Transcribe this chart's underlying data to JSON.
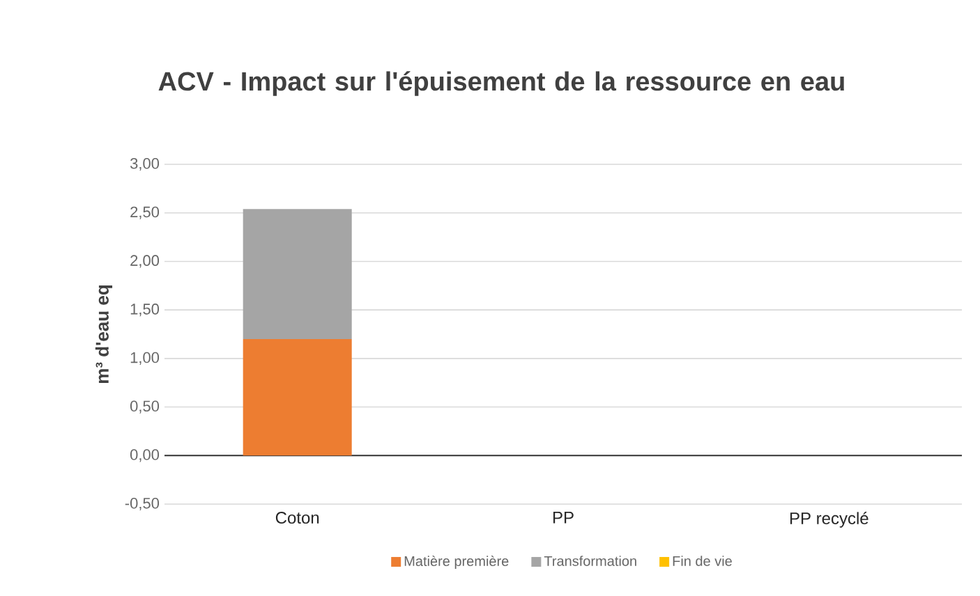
{
  "chart_data": {
    "type": "bar",
    "title": "ACV - Impact sur l'épuisement de la ressource en eau",
    "ylabel": "m³ d'eau eq",
    "categories": [
      "Coton",
      "PP",
      "PP recyclé"
    ],
    "series": [
      {
        "name": "Matière première",
        "color": "#ed7d31",
        "values": [
          1.2,
          0,
          0
        ]
      },
      {
        "name": "Transformation",
        "color": "#a5a5a5",
        "values": [
          1.34,
          0,
          0
        ]
      },
      {
        "name": "Fin de vie",
        "color": "#ffc000",
        "values": [
          0,
          0,
          0
        ]
      }
    ],
    "stacked": true,
    "ylim": [
      -0.5,
      3.0
    ],
    "yticks": [
      {
        "value": -0.5,
        "label": "-0,50"
      },
      {
        "value": 0,
        "label": "0,00"
      },
      {
        "value": 0.5,
        "label": "0,50"
      },
      {
        "value": 1.0,
        "label": "1,00"
      },
      {
        "value": 1.5,
        "label": "1,50"
      },
      {
        "value": 2.0,
        "label": "2,00"
      },
      {
        "value": 2.5,
        "label": "2,50"
      },
      {
        "value": 3.0,
        "label": "3,00"
      }
    ],
    "grid": "y",
    "legend": "bottom"
  }
}
